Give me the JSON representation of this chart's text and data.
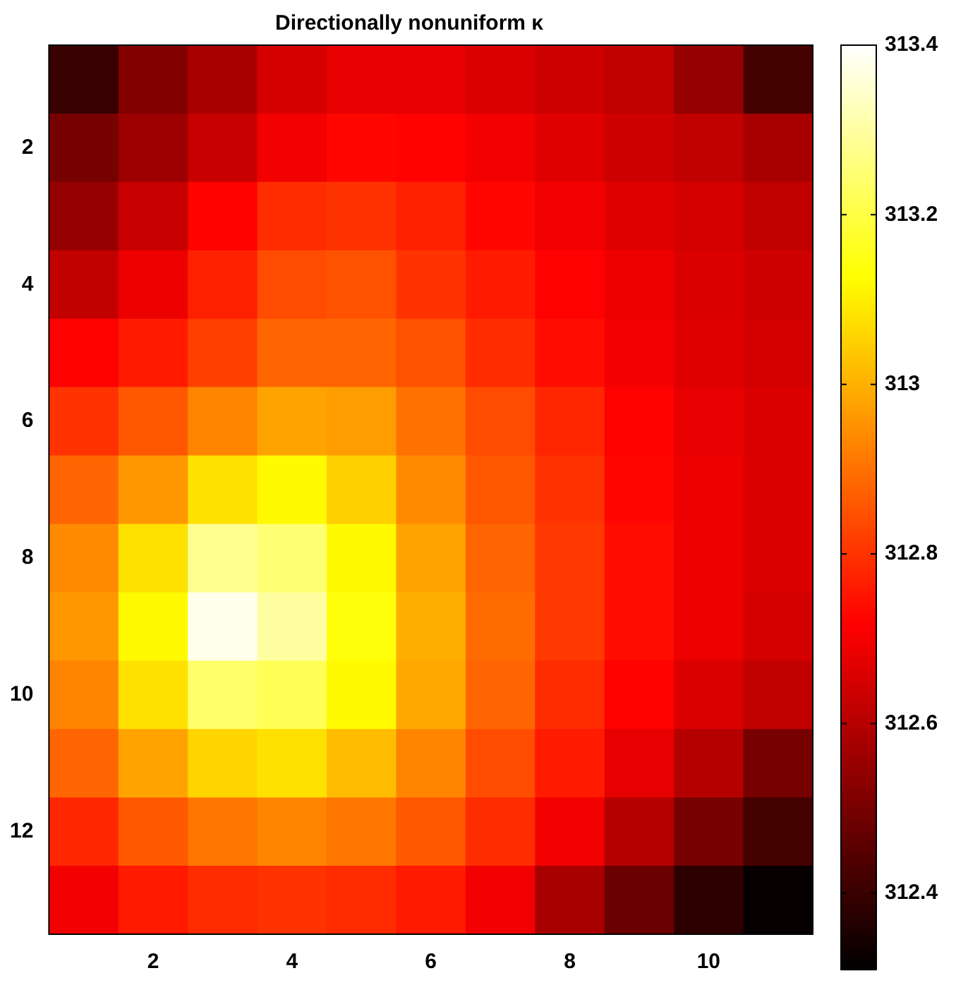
{
  "chart_data": {
    "type": "heatmap",
    "title": "Directionally nonuniform κ",
    "categories": [
      null,
      "2",
      null,
      "4",
      null,
      "6",
      null,
      "8",
      null,
      "10",
      null
    ],
    "y_categories": [
      null,
      "2",
      null,
      "4",
      null,
      "6",
      null,
      "8",
      null,
      "10",
      null,
      "12",
      null
    ],
    "cells": [
      [
        312.4,
        312.52,
        312.58,
        312.65,
        312.68,
        312.68,
        312.66,
        312.64,
        312.62,
        312.55,
        312.42
      ],
      [
        312.5,
        312.56,
        312.63,
        312.7,
        312.73,
        312.72,
        312.7,
        312.67,
        312.64,
        312.62,
        312.58
      ],
      [
        312.55,
        312.63,
        312.72,
        312.79,
        312.8,
        312.77,
        312.73,
        312.7,
        312.67,
        312.65,
        312.62
      ],
      [
        312.62,
        312.69,
        312.77,
        312.84,
        312.85,
        312.8,
        312.76,
        312.72,
        312.69,
        312.66,
        312.64
      ],
      [
        312.72,
        312.76,
        312.82,
        312.88,
        312.88,
        312.85,
        312.79,
        312.74,
        312.7,
        312.67,
        312.65
      ],
      [
        312.8,
        312.86,
        312.93,
        312.98,
        312.97,
        312.9,
        312.84,
        312.78,
        312.72,
        312.68,
        312.66
      ],
      [
        312.88,
        312.96,
        313.08,
        313.12,
        313.05,
        312.94,
        312.86,
        312.8,
        312.73,
        312.69,
        312.66
      ],
      [
        312.94,
        313.08,
        313.28,
        313.25,
        313.12,
        312.98,
        312.88,
        312.81,
        312.74,
        312.69,
        312.66
      ],
      [
        312.96,
        313.12,
        313.38,
        313.3,
        313.14,
        313.0,
        312.89,
        312.81,
        312.74,
        312.69,
        312.65
      ],
      [
        312.93,
        313.08,
        313.24,
        313.22,
        313.12,
        312.99,
        312.88,
        312.79,
        312.72,
        312.66,
        312.62
      ],
      [
        312.88,
        312.98,
        313.06,
        313.08,
        313.02,
        312.93,
        312.84,
        312.76,
        312.68,
        312.6,
        312.5
      ],
      [
        312.78,
        312.86,
        312.91,
        312.93,
        312.91,
        312.86,
        312.79,
        312.7,
        312.6,
        312.5,
        312.42
      ],
      [
        312.7,
        312.76,
        312.79,
        312.8,
        312.79,
        312.76,
        312.7,
        312.58,
        312.48,
        312.38,
        312.32
      ]
    ],
    "clim": [
      312.31,
      313.4
    ],
    "cticks": [
      312.4,
      312.6,
      312.8,
      313,
      313.2,
      313.4
    ]
  }
}
